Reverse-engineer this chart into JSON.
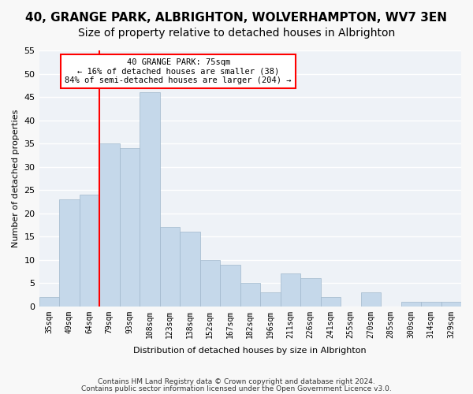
{
  "title1": "40, GRANGE PARK, ALBRIGHTON, WOLVERHAMPTON, WV7 3EN",
  "title2": "Size of property relative to detached houses in Albrighton",
  "xlabel": "Distribution of detached houses by size in Albrighton",
  "ylabel": "Number of detached properties",
  "footer1": "Contains HM Land Registry data © Crown copyright and database right 2024.",
  "footer2": "Contains public sector information licensed under the Open Government Licence v3.0.",
  "categories": [
    "35sqm",
    "49sqm",
    "64sqm",
    "79sqm",
    "93sqm",
    "108sqm",
    "123sqm",
    "138sqm",
    "152sqm",
    "167sqm",
    "182sqm",
    "196sqm",
    "211sqm",
    "226sqm",
    "241sqm",
    "255sqm",
    "270sqm",
    "285sqm",
    "300sqm",
    "314sqm",
    "329sqm"
  ],
  "values": [
    2,
    23,
    24,
    35,
    34,
    46,
    17,
    16,
    10,
    9,
    5,
    3,
    7,
    6,
    2,
    0,
    3,
    0,
    1,
    1,
    1
  ],
  "bar_color": "#c5d8ea",
  "bar_edge_color": "#a0b8cc",
  "red_line_x": 2.5,
  "annotation_title": "40 GRANGE PARK: 75sqm",
  "annotation_line1": "← 16% of detached houses are smaller (38)",
  "annotation_line2": "84% of semi-detached houses are larger (204) →",
  "ylim": [
    0,
    55
  ],
  "yticks": [
    0,
    5,
    10,
    15,
    20,
    25,
    30,
    35,
    40,
    45,
    50,
    55
  ],
  "bg_color": "#eef2f7",
  "grid_color": "#ffffff",
  "bar_width": 1.0,
  "title1_fontsize": 11,
  "title2_fontsize": 10
}
